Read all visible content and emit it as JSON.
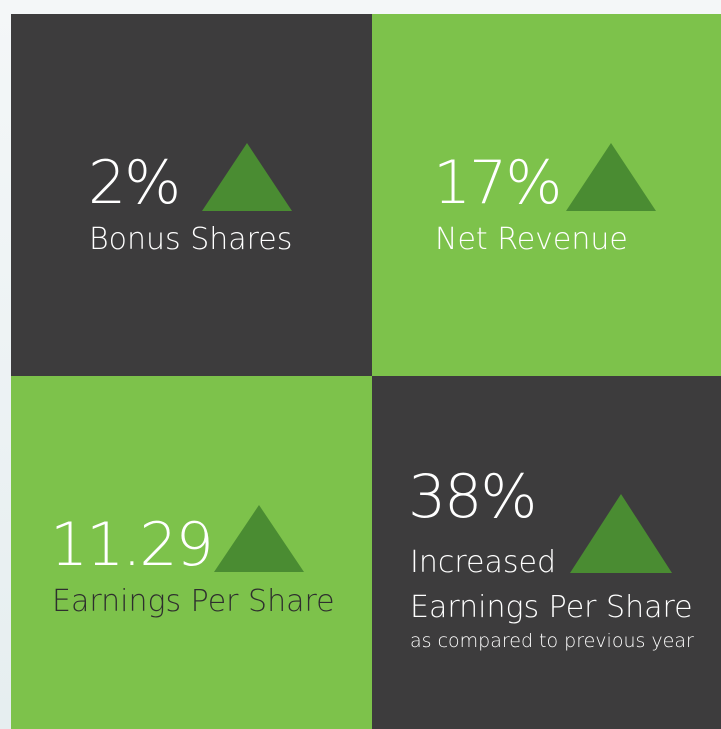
{
  "tiles": [
    {
      "value": "2%",
      "label": "Bonus Shares"
    },
    {
      "value": "17%",
      "label": "Net Revenue"
    },
    {
      "value": "11.29",
      "label": "Earnings Per Share"
    },
    {
      "value": "38%",
      "label_lines": [
        "Increased",
        "Earnings Per Share"
      ],
      "note": "as compared to previous year"
    }
  ]
}
